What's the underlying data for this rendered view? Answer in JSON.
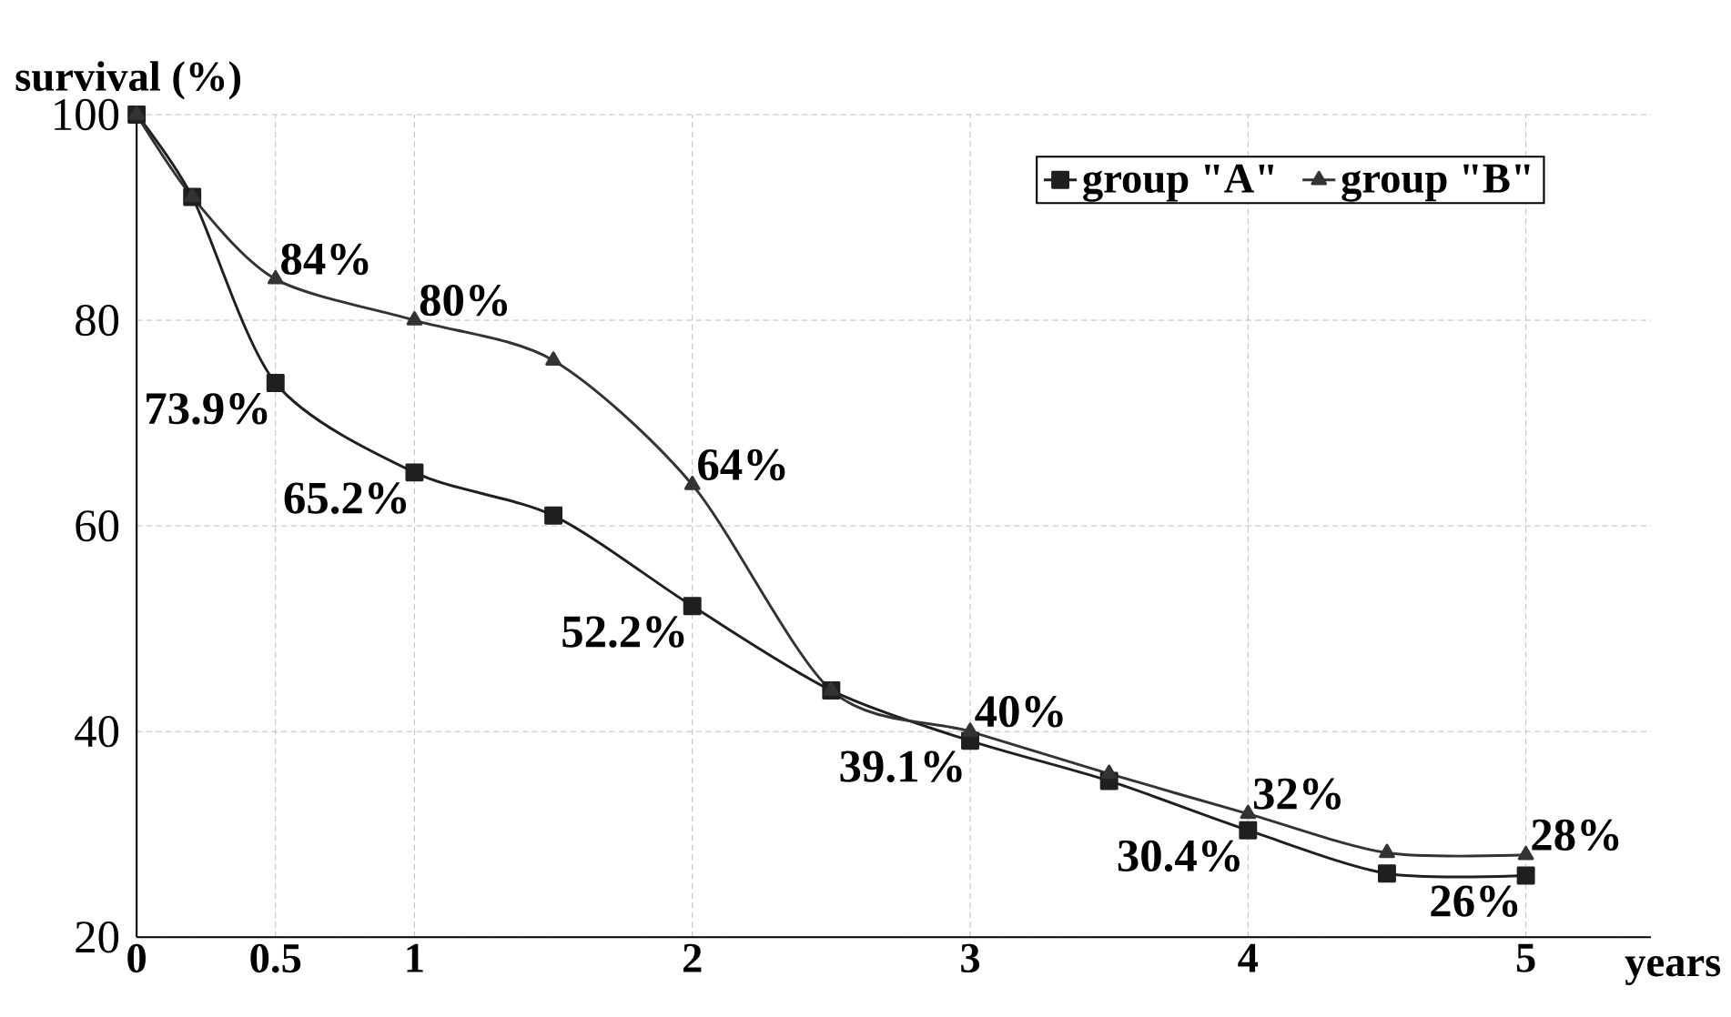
{
  "chart_data": {
    "type": "line",
    "ylabel": "survival (%)",
    "xlabel": "years",
    "xlim": [
      0,
      5.45
    ],
    "ylim": [
      20,
      100
    ],
    "xticks": [
      0,
      0.5,
      1,
      2,
      3,
      4,
      5
    ],
    "yticks": [
      20,
      40,
      60,
      80,
      100
    ],
    "grid": true,
    "legend": "top right",
    "line_style": "solid",
    "series": [
      {
        "name": "group \"A\"",
        "color": "#1f1f1f",
        "marker": "square",
        "x": [
          0,
          0.2,
          0.5,
          1,
          1.5,
          2,
          2.5,
          3,
          3.5,
          4,
          4.5,
          5
        ],
        "values": [
          100,
          92,
          73.9,
          65.2,
          61,
          52.2,
          44,
          39.1,
          35.2,
          30.4,
          26.2,
          26
        ],
        "value_labels": [
          null,
          null,
          "73.9%",
          "65.2%",
          null,
          "52.2%",
          null,
          "39.1%",
          null,
          "30.4%",
          null,
          "26%"
        ]
      },
      {
        "name": "group \"B\"",
        "color": "#333333",
        "marker": "triangle",
        "x": [
          0,
          0.2,
          0.5,
          1,
          1.5,
          2,
          2.5,
          3,
          3.5,
          4,
          4.5,
          5
        ],
        "values": [
          100,
          92,
          84,
          80,
          76.1,
          64,
          44,
          40,
          35.9,
          32,
          28.2,
          28
        ],
        "value_labels": [
          null,
          null,
          "84%",
          "80%",
          null,
          "64%",
          null,
          "40%",
          null,
          "32%",
          null,
          "28%"
        ]
      }
    ]
  }
}
